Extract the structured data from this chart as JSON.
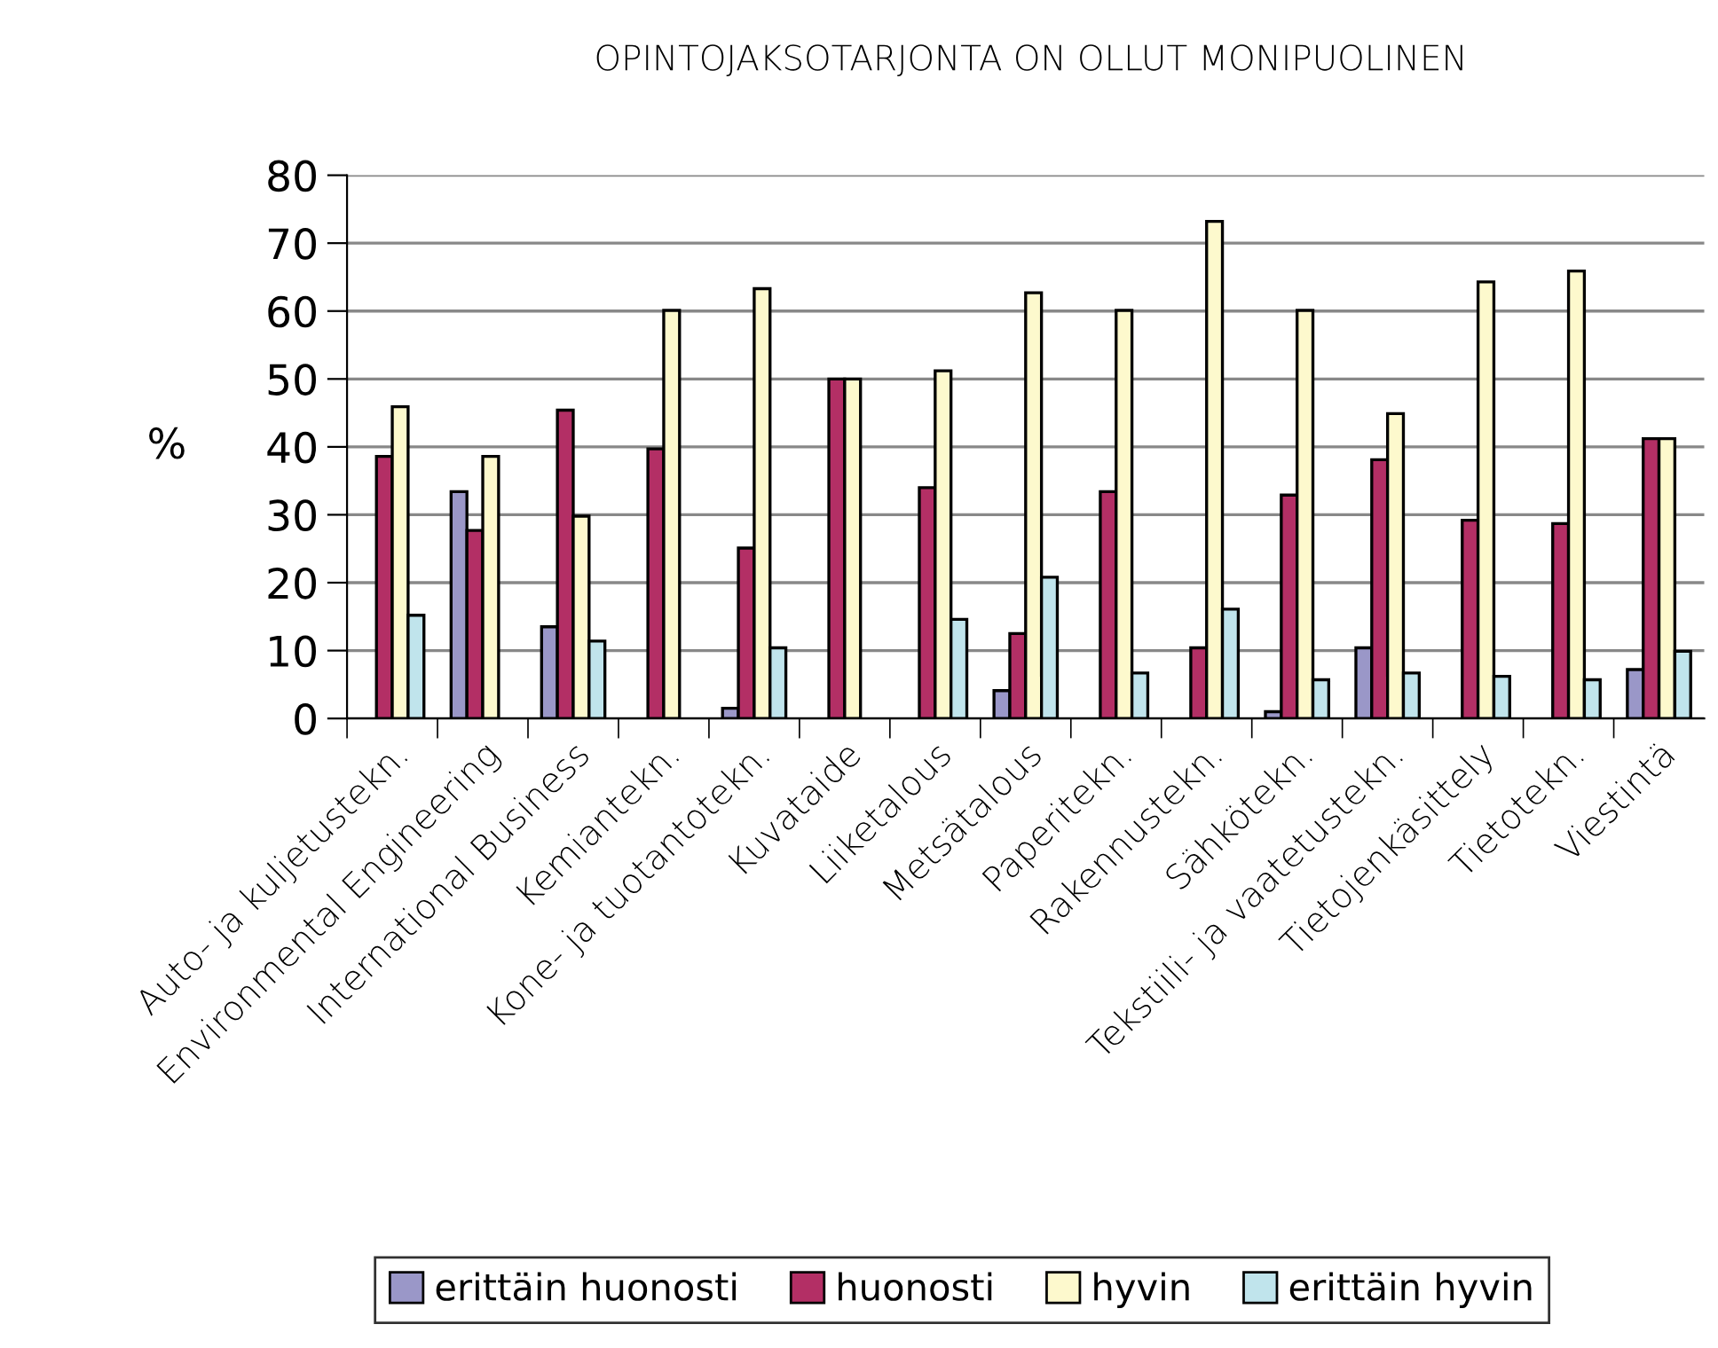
{
  "chart_data": {
    "type": "bar",
    "title": "OPINTOJAKSOTARJONTA ON OLLUT MONIPUOLINEN",
    "ylabel": "%",
    "categories": [
      "Auto- ja kuljetustekn.",
      "Environmental Engineering",
      "International Business",
      "Kemiantekn.",
      "Kone- ja tuotantotekn.",
      "Kuvataide",
      "Liiketalous",
      "Metsätalous",
      "Paperitekn.",
      "Rakennustekn.",
      "Sähkötekn.",
      "Tekstiili- ja vaatetustekn.",
      "Tietojenkäsittely",
      "Tietotekn.",
      "Viestintä"
    ],
    "series": [
      {
        "name": "erittäin huonosti",
        "color": "#9a97c8",
        "values": [
          null,
          33.4,
          13.5,
          null,
          1.5,
          null,
          null,
          4.1,
          null,
          null,
          1.0,
          10.4,
          null,
          null,
          7.2
        ]
      },
      {
        "name": "huonosti",
        "color": "#b32f65",
        "values": [
          38.6,
          27.7,
          45.4,
          39.7,
          25.1,
          50,
          34.0,
          12.5,
          33.4,
          10.4,
          32.9,
          38.1,
          29.2,
          28.7,
          41.2
        ]
      },
      {
        "name": "hyvin",
        "color": "#fdf9cd",
        "values": [
          45.9,
          38.6,
          29.8,
          60.1,
          63.3,
          50,
          51.2,
          62.7,
          60.1,
          73.2,
          60.1,
          44.9,
          64.3,
          65.9,
          41.2
        ]
      },
      {
        "name": "erittäin hyvin",
        "color": "#c0e4ec",
        "values": [
          15.2,
          null,
          11.4,
          null,
          10.4,
          null,
          14.6,
          20.8,
          6.7,
          16.1,
          5.7,
          6.7,
          6.2,
          5.7,
          9.9
        ]
      }
    ],
    "ylim": [
      0,
      80
    ],
    "yticks": [
      0,
      10,
      20,
      30,
      40,
      50,
      60,
      70,
      80
    ],
    "grid": "y",
    "legend": "bottom"
  }
}
